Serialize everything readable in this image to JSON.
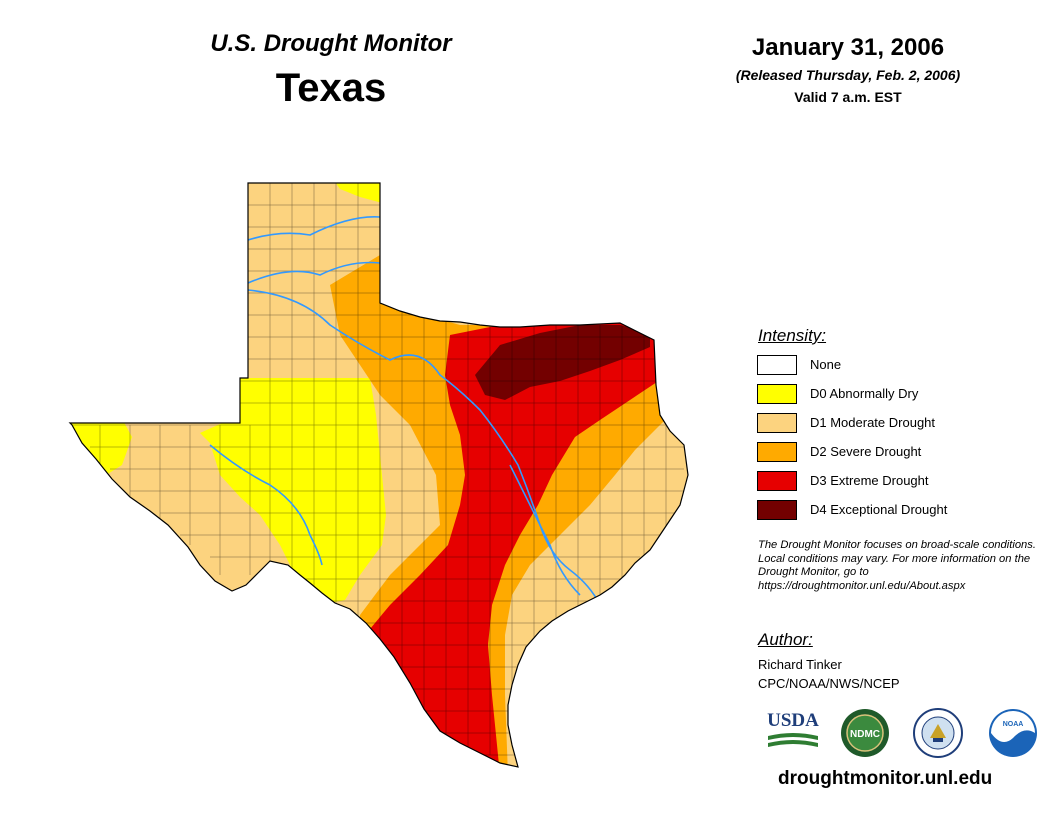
{
  "header": {
    "series": "U.S. Drought Monitor",
    "region": "Texas",
    "date": "January 31, 2006",
    "released": "(Released Thursday, Feb. 2, 2006)",
    "valid": "Valid 7 a.m. EST"
  },
  "legend": {
    "title": "Intensity:",
    "items": [
      {
        "label": "None",
        "color": "#ffffff"
      },
      {
        "label": "D0 Abnormally Dry",
        "color": "#ffff00"
      },
      {
        "label": "D1 Moderate Drought",
        "color": "#fcd37f"
      },
      {
        "label": "D2 Severe Drought",
        "color": "#ffaa00"
      },
      {
        "label": "D3 Extreme Drought",
        "color": "#e60000"
      },
      {
        "label": "D4 Exceptional Drought",
        "color": "#730000"
      }
    ]
  },
  "note": "The Drought Monitor focuses on broad-scale conditions. Local conditions may vary. For more information on the Drought Monitor, go to https://droughtmonitor.unl.edu/About.aspx",
  "author": {
    "title": "Author:",
    "name": "Richard Tinker",
    "org": "CPC/NOAA/NWS/NCEP"
  },
  "logos": {
    "usda": "USDA",
    "ndmc": "NDMC",
    "noaa": "NOAA"
  },
  "footer": {
    "url": "droughtmonitor.unl.edu"
  },
  "colors": {
    "river": "#3399ff",
    "county_line": "#000000"
  }
}
